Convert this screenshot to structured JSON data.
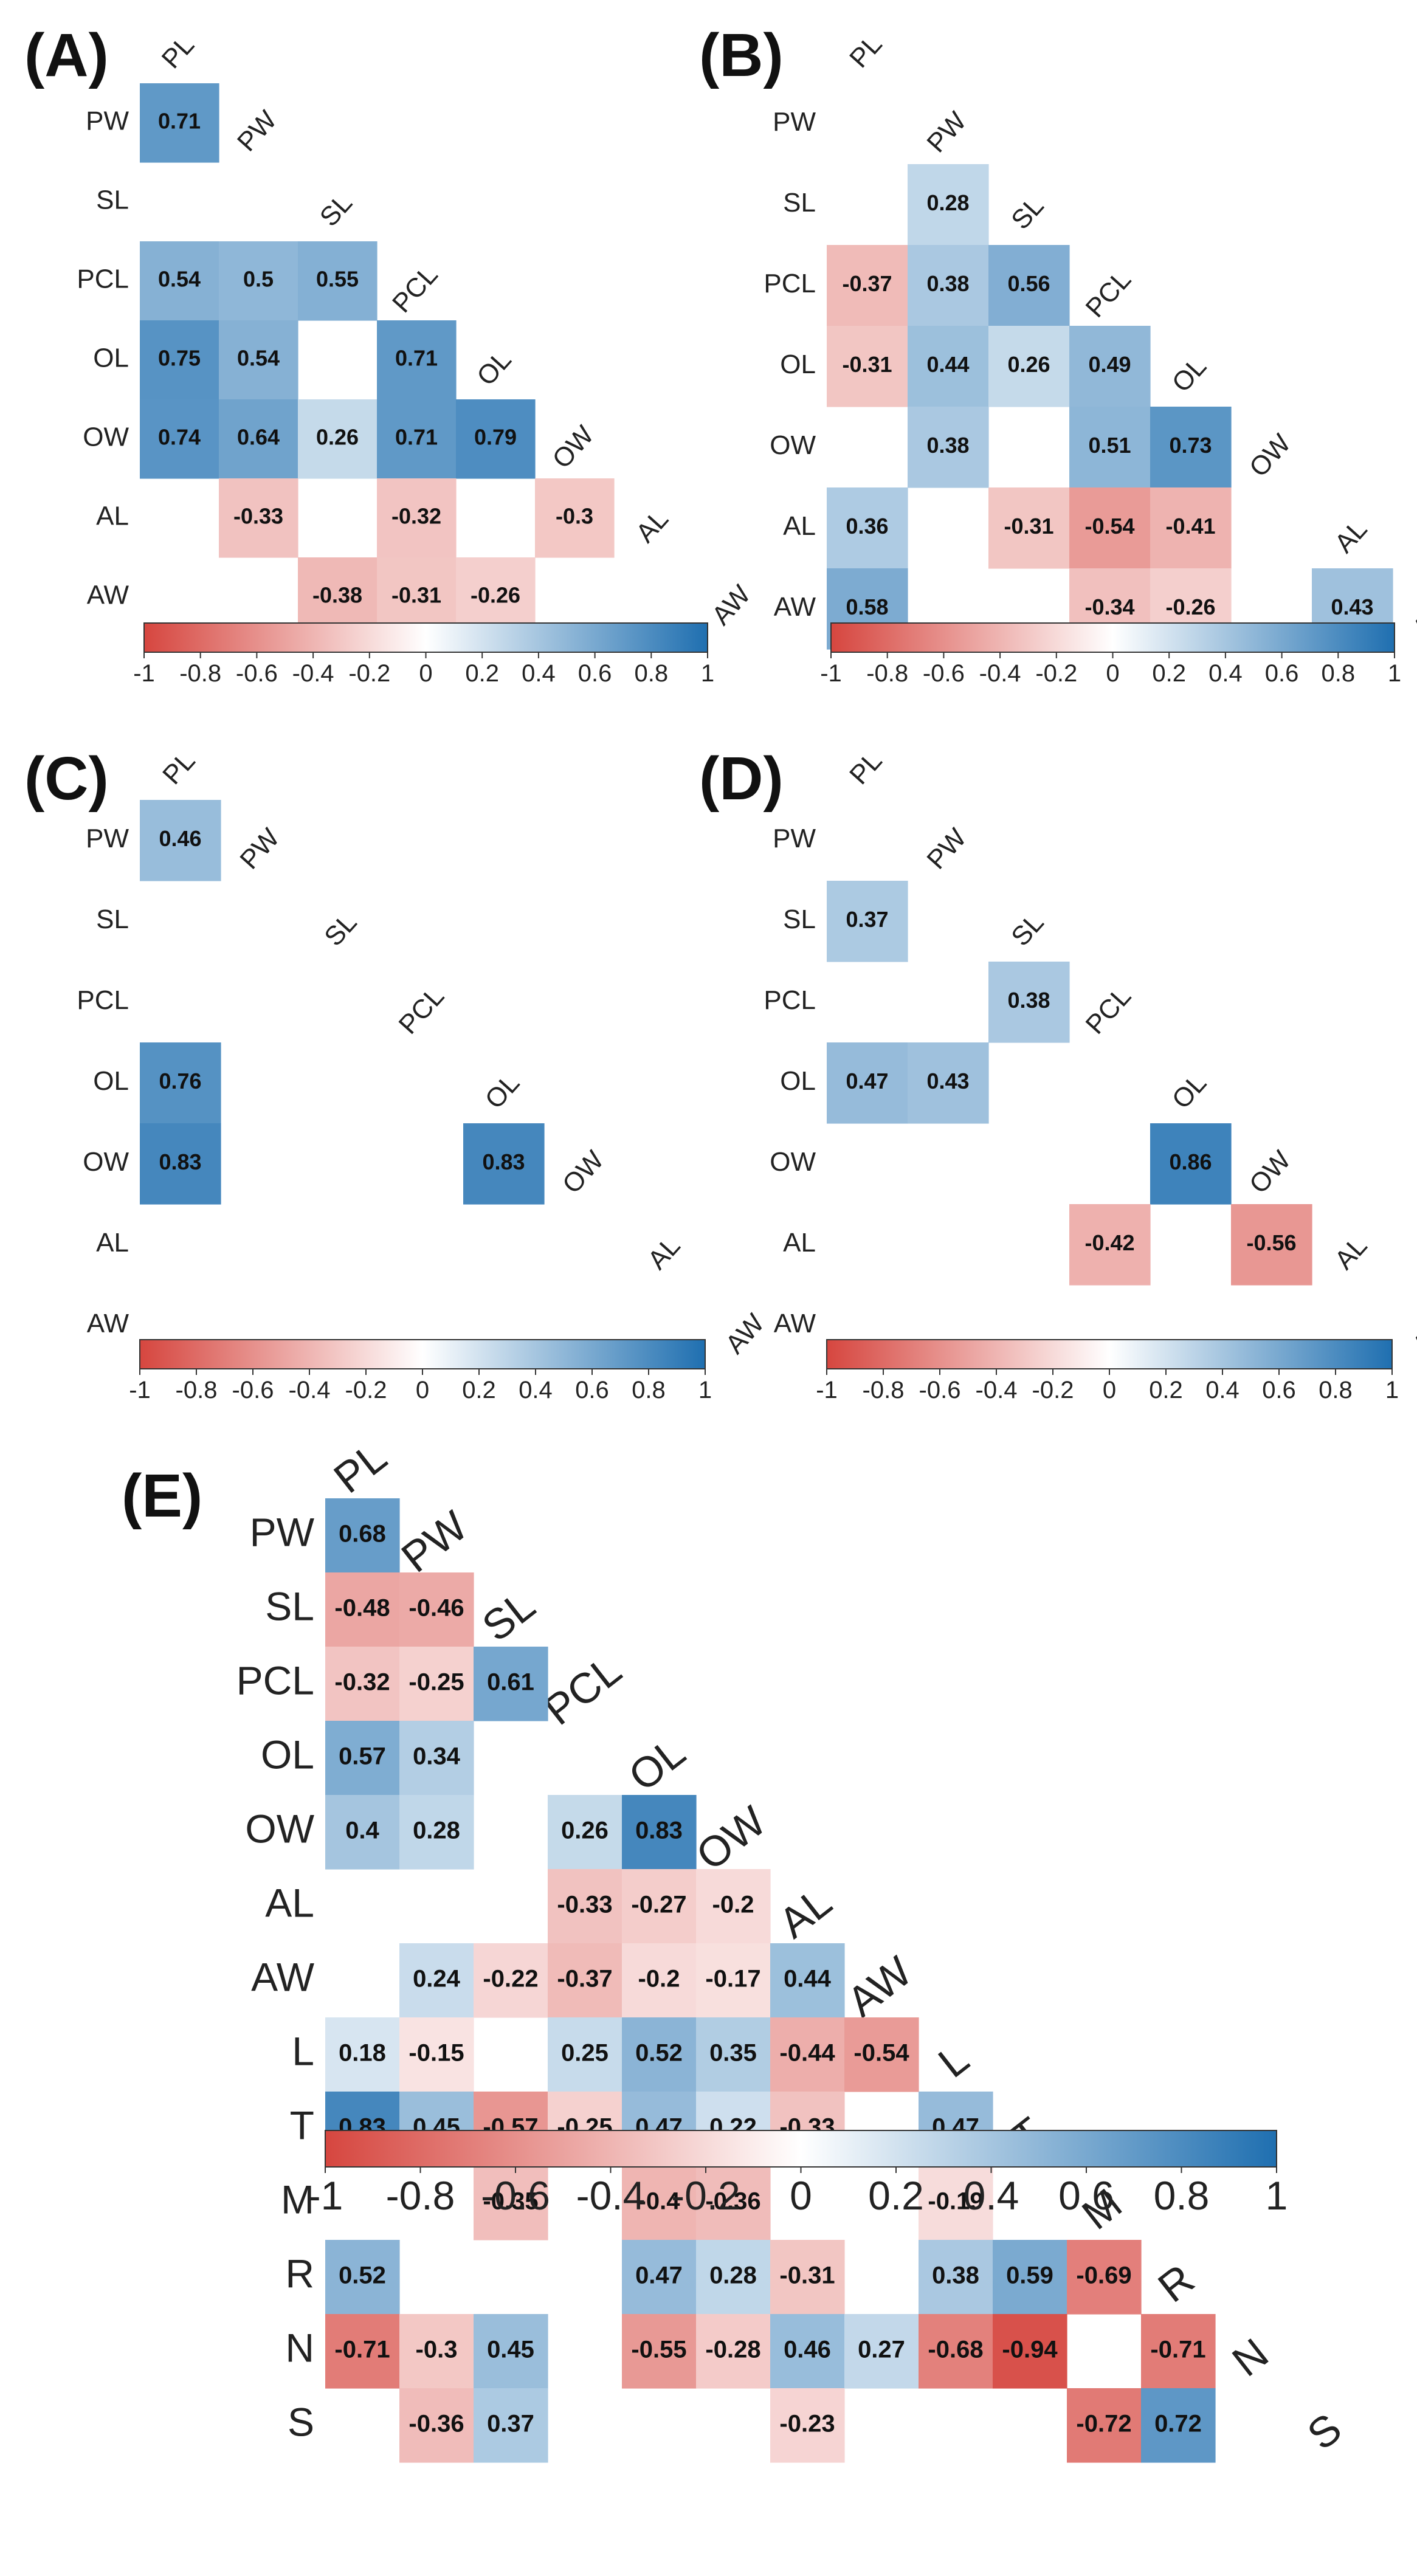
{
  "chart_data": [
    {
      "type": "heatmap",
      "panel": "(A)",
      "variables": [
        "PL",
        "PW",
        "SL",
        "PCL",
        "OL",
        "OW",
        "AL",
        "AW"
      ],
      "cells": [
        {
          "row": "PW",
          "col": "PL",
          "value": 0.71
        },
        {
          "row": "PCL",
          "col": "PL",
          "value": 0.54
        },
        {
          "row": "PCL",
          "col": "PW",
          "value": 0.5
        },
        {
          "row": "PCL",
          "col": "SL",
          "value": 0.55
        },
        {
          "row": "OL",
          "col": "PL",
          "value": 0.75
        },
        {
          "row": "OL",
          "col": "PW",
          "value": 0.54
        },
        {
          "row": "OL",
          "col": "PCL",
          "value": 0.71
        },
        {
          "row": "OW",
          "col": "PL",
          "value": 0.74
        },
        {
          "row": "OW",
          "col": "PW",
          "value": 0.64
        },
        {
          "row": "OW",
          "col": "SL",
          "value": 0.26
        },
        {
          "row": "OW",
          "col": "PCL",
          "value": 0.71
        },
        {
          "row": "OW",
          "col": "OL",
          "value": 0.79
        },
        {
          "row": "AL",
          "col": "PW",
          "value": -0.33
        },
        {
          "row": "AL",
          "col": "PCL",
          "value": -0.32
        },
        {
          "row": "AL",
          "col": "OW",
          "value": -0.3
        },
        {
          "row": "AW",
          "col": "SL",
          "value": -0.38
        },
        {
          "row": "AW",
          "col": "PCL",
          "value": -0.31
        },
        {
          "row": "AW",
          "col": "OL",
          "value": -0.26
        }
      ],
      "colorbar_ticks": [
        "-1",
        "-0.8",
        "-0.6",
        "-0.4",
        "-0.2",
        "0",
        "0.2",
        "0.4",
        "0.6",
        "0.8",
        "1"
      ],
      "range": [
        -1,
        1
      ]
    },
    {
      "type": "heatmap",
      "panel": "(B)",
      "variables": [
        "PL",
        "PW",
        "SL",
        "PCL",
        "OL",
        "OW",
        "AL",
        "AW"
      ],
      "cells": [
        {
          "row": "SL",
          "col": "PW",
          "value": 0.28
        },
        {
          "row": "PCL",
          "col": "PL",
          "value": -0.37
        },
        {
          "row": "PCL",
          "col": "PW",
          "value": 0.38
        },
        {
          "row": "PCL",
          "col": "SL",
          "value": 0.56
        },
        {
          "row": "OL",
          "col": "PL",
          "value": -0.31
        },
        {
          "row": "OL",
          "col": "PW",
          "value": 0.44
        },
        {
          "row": "OL",
          "col": "SL",
          "value": 0.26
        },
        {
          "row": "OL",
          "col": "PCL",
          "value": 0.49
        },
        {
          "row": "OW",
          "col": "PW",
          "value": 0.38
        },
        {
          "row": "OW",
          "col": "PCL",
          "value": 0.51
        },
        {
          "row": "OW",
          "col": "OL",
          "value": 0.73
        },
        {
          "row": "AL",
          "col": "PL",
          "value": 0.36
        },
        {
          "row": "AL",
          "col": "SL",
          "value": -0.31
        },
        {
          "row": "AL",
          "col": "PCL",
          "value": -0.54
        },
        {
          "row": "AL",
          "col": "OL",
          "value": -0.41
        },
        {
          "row": "AW",
          "col": "PL",
          "value": 0.58
        },
        {
          "row": "AW",
          "col": "PCL",
          "value": -0.34
        },
        {
          "row": "AW",
          "col": "OL",
          "value": -0.26
        },
        {
          "row": "AW",
          "col": "AL",
          "value": 0.43
        }
      ],
      "colorbar_ticks": [
        "-1",
        "-0.8",
        "-0.6",
        "-0.4",
        "-0.2",
        "0",
        "0.2",
        "0.4",
        "0.6",
        "0.8",
        "1"
      ],
      "range": [
        -1,
        1
      ]
    },
    {
      "type": "heatmap",
      "panel": "(C)",
      "variables": [
        "PL",
        "PW",
        "SL",
        "PCL",
        "OL",
        "OW",
        "AL",
        "AW"
      ],
      "cells": [
        {
          "row": "PW",
          "col": "PL",
          "value": 0.46
        },
        {
          "row": "OL",
          "col": "PL",
          "value": 0.76
        },
        {
          "row": "OW",
          "col": "PL",
          "value": 0.83
        },
        {
          "row": "OW",
          "col": "OL",
          "value": 0.83
        }
      ],
      "colorbar_ticks": [
        "-1",
        "-0.8",
        "-0.6",
        "-0.4",
        "-0.2",
        "0",
        "0.2",
        "0.4",
        "0.6",
        "0.8",
        "1"
      ],
      "range": [
        -1,
        1
      ]
    },
    {
      "type": "heatmap",
      "panel": "(D)",
      "variables": [
        "PL",
        "PW",
        "SL",
        "PCL",
        "OL",
        "OW",
        "AL",
        "AW"
      ],
      "cells": [
        {
          "row": "SL",
          "col": "PL",
          "value": 0.37
        },
        {
          "row": "PCL",
          "col": "SL",
          "value": 0.38
        },
        {
          "row": "OL",
          "col": "PL",
          "value": 0.47
        },
        {
          "row": "OL",
          "col": "PW",
          "value": 0.43
        },
        {
          "row": "OW",
          "col": "OL",
          "value": 0.86
        },
        {
          "row": "AL",
          "col": "PCL",
          "value": -0.42
        },
        {
          "row": "AL",
          "col": "OW",
          "value": -0.56
        }
      ],
      "colorbar_ticks": [
        "-1",
        "-0.8",
        "-0.6",
        "-0.4",
        "-0.2",
        "0",
        "0.2",
        "0.4",
        "0.6",
        "0.8",
        "1"
      ],
      "range": [
        -1,
        1
      ]
    },
    {
      "type": "heatmap",
      "panel": "(E)",
      "variables": [
        "PL",
        "PW",
        "SL",
        "PCL",
        "OL",
        "OW",
        "AL",
        "AW",
        "L",
        "T",
        "M",
        "R",
        "N",
        "S"
      ],
      "cells": [
        {
          "row": "PW",
          "col": "PL",
          "value": 0.68
        },
        {
          "row": "SL",
          "col": "PL",
          "value": -0.48
        },
        {
          "row": "SL",
          "col": "PW",
          "value": -0.46
        },
        {
          "row": "PCL",
          "col": "PL",
          "value": -0.32
        },
        {
          "row": "PCL",
          "col": "PW",
          "value": -0.25
        },
        {
          "row": "PCL",
          "col": "SL",
          "value": 0.61
        },
        {
          "row": "OL",
          "col": "PL",
          "value": 0.57
        },
        {
          "row": "OL",
          "col": "PW",
          "value": 0.34
        },
        {
          "row": "OW",
          "col": "PL",
          "value": 0.4
        },
        {
          "row": "OW",
          "col": "PW",
          "value": 0.28
        },
        {
          "row": "OW",
          "col": "PCL",
          "value": 0.26
        },
        {
          "row": "OW",
          "col": "OL",
          "value": 0.83
        },
        {
          "row": "AL",
          "col": "PCL",
          "value": -0.33
        },
        {
          "row": "AL",
          "col": "OL",
          "value": -0.27
        },
        {
          "row": "AL",
          "col": "OW",
          "value": -0.2
        },
        {
          "row": "AW",
          "col": "PW",
          "value": 0.24
        },
        {
          "row": "AW",
          "col": "SL",
          "value": -0.22
        },
        {
          "row": "AW",
          "col": "PCL",
          "value": -0.37
        },
        {
          "row": "AW",
          "col": "OL",
          "value": -0.2
        },
        {
          "row": "AW",
          "col": "OW",
          "value": -0.17
        },
        {
          "row": "AW",
          "col": "AL",
          "value": 0.44
        },
        {
          "row": "L",
          "col": "PL",
          "value": 0.18
        },
        {
          "row": "L",
          "col": "PW",
          "value": -0.15
        },
        {
          "row": "L",
          "col": "PCL",
          "value": 0.25
        },
        {
          "row": "L",
          "col": "OL",
          "value": 0.52
        },
        {
          "row": "L",
          "col": "OW",
          "value": 0.35
        },
        {
          "row": "L",
          "col": "AL",
          "value": -0.44
        },
        {
          "row": "L",
          "col": "AW",
          "value": -0.54
        },
        {
          "row": "T",
          "col": "PL",
          "value": 0.83
        },
        {
          "row": "T",
          "col": "PW",
          "value": 0.45
        },
        {
          "row": "T",
          "col": "SL",
          "value": -0.57
        },
        {
          "row": "T",
          "col": "PCL",
          "value": -0.25
        },
        {
          "row": "T",
          "col": "OL",
          "value": 0.47
        },
        {
          "row": "T",
          "col": "OW",
          "value": 0.22
        },
        {
          "row": "T",
          "col": "AL",
          "value": -0.33
        },
        {
          "row": "T",
          "col": "L",
          "value": 0.47
        },
        {
          "row": "M",
          "col": "SL",
          "value": -0.35
        },
        {
          "row": "M",
          "col": "OL",
          "value": -0.4
        },
        {
          "row": "M",
          "col": "OW",
          "value": -0.36
        },
        {
          "row": "M",
          "col": "L",
          "value": -0.19
        },
        {
          "row": "R",
          "col": "PL",
          "value": 0.52
        },
        {
          "row": "R",
          "col": "OL",
          "value": 0.47
        },
        {
          "row": "R",
          "col": "OW",
          "value": 0.28
        },
        {
          "row": "R",
          "col": "AL",
          "value": -0.31
        },
        {
          "row": "R",
          "col": "L",
          "value": 0.38
        },
        {
          "row": "R",
          "col": "T",
          "value": 0.59
        },
        {
          "row": "R",
          "col": "M",
          "value": -0.69
        },
        {
          "row": "N",
          "col": "PL",
          "value": -0.71
        },
        {
          "row": "N",
          "col": "PW",
          "value": -0.3
        },
        {
          "row": "N",
          "col": "SL",
          "value": 0.45
        },
        {
          "row": "N",
          "col": "OL",
          "value": -0.55
        },
        {
          "row": "N",
          "col": "OW",
          "value": -0.28
        },
        {
          "row": "N",
          "col": "AL",
          "value": 0.46
        },
        {
          "row": "N",
          "col": "AW",
          "value": 0.27
        },
        {
          "row": "N",
          "col": "L",
          "value": -0.68
        },
        {
          "row": "N",
          "col": "T",
          "value": -0.94
        },
        {
          "row": "N",
          "col": "R",
          "value": -0.71
        },
        {
          "row": "S",
          "col": "PW",
          "value": -0.36
        },
        {
          "row": "S",
          "col": "SL",
          "value": 0.37
        },
        {
          "row": "S",
          "col": "AL",
          "value": -0.23
        },
        {
          "row": "S",
          "col": "M",
          "value": -0.72
        },
        {
          "row": "S",
          "col": "R",
          "value": 0.72
        }
      ],
      "colorbar_ticks": [
        "-1",
        "-0.8",
        "-0.6",
        "-0.4",
        "-0.2",
        "0",
        "0.2",
        "0.4",
        "0.6",
        "0.8",
        "1"
      ],
      "range": [
        -1,
        1
      ]
    }
  ],
  "colors": {
    "negative": "#d6463f",
    "zero": "#ffffff",
    "positive": "#1f6fb0"
  }
}
